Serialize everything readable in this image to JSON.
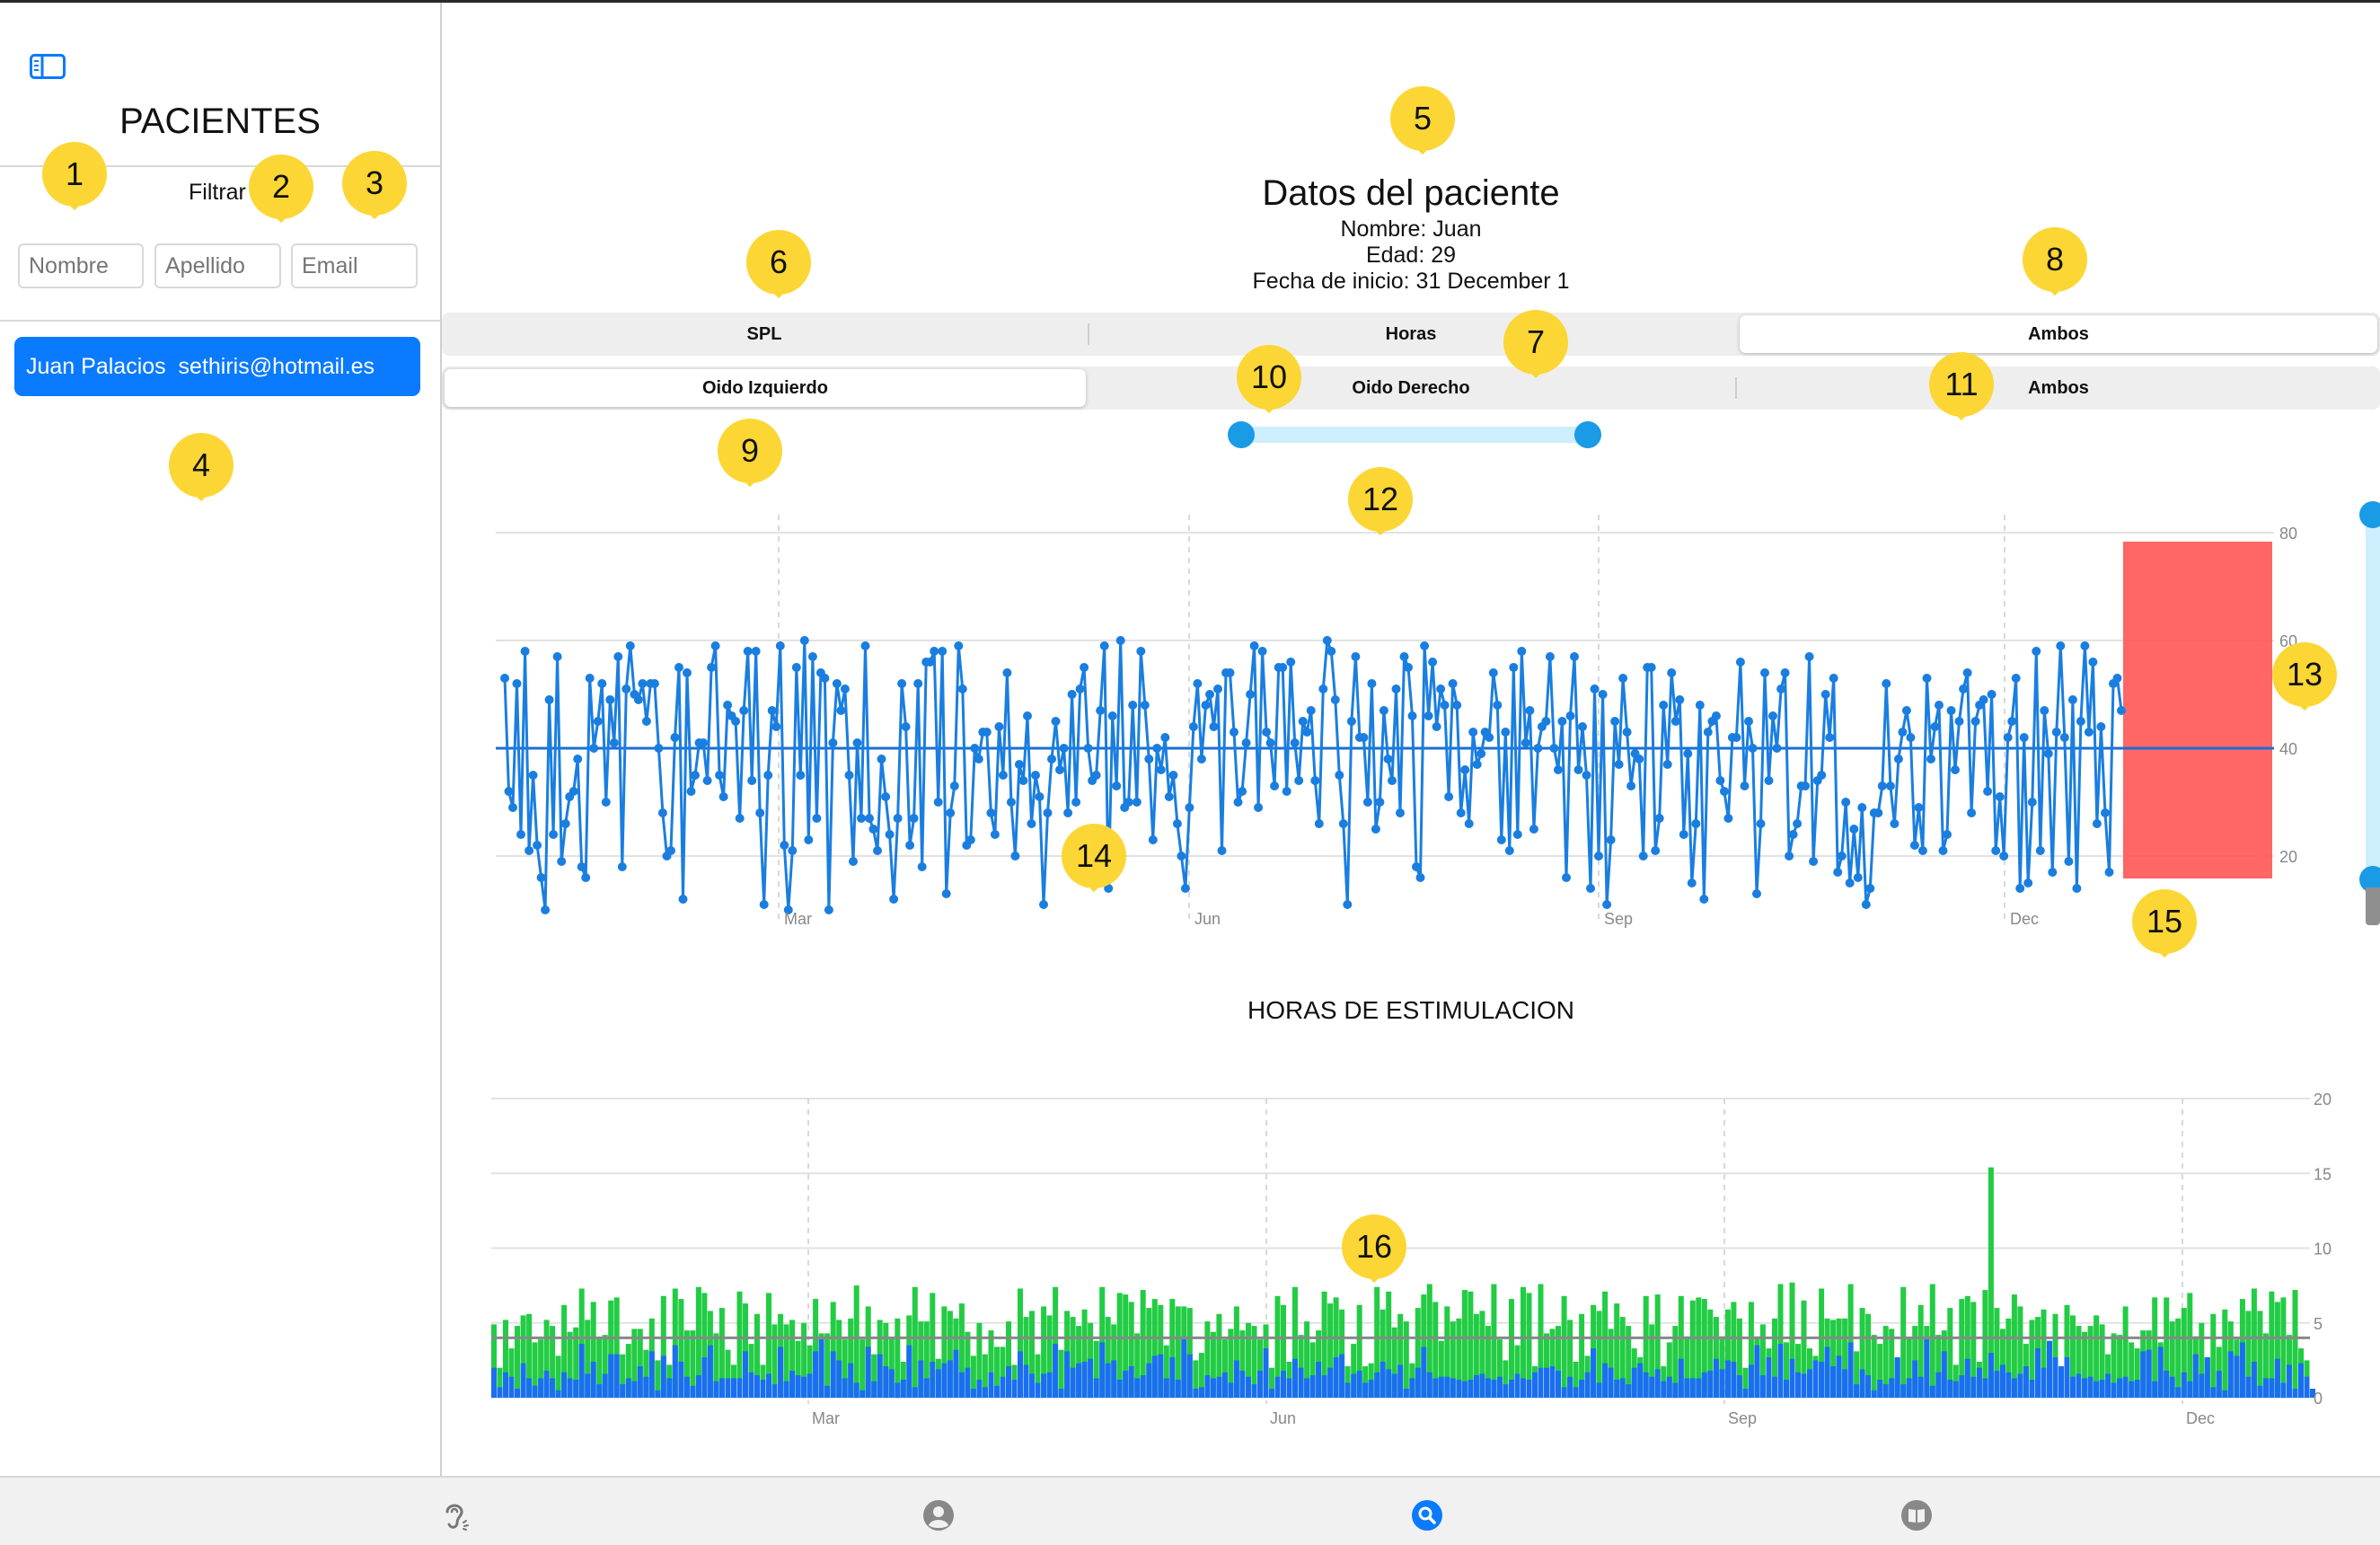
{
  "sidebar": {
    "title": "PACIENTES",
    "filter_label": "Filtrar",
    "filters": {
      "nombre": "Nombre",
      "apellido": "Apellido",
      "email": "Email"
    },
    "patients": [
      {
        "label": "Juan Palacios  sethiris@hotmail.es"
      }
    ]
  },
  "patient": {
    "title": "Datos del paciente",
    "nombre": "Nombre: Juan",
    "edad": "Edad: 29",
    "fecha": "Fecha de inicio: 31 December 1"
  },
  "segment_metric": {
    "items": [
      "SPL",
      "Horas",
      "Ambos"
    ],
    "selected": 2
  },
  "segment_ear": {
    "items": [
      "Oido Izquierdo",
      "Oido Derecho",
      "Ambos"
    ],
    "selected": 0
  },
  "colors": {
    "accent": "#0a7aff",
    "spl_line": "#1a7ee0",
    "left_ear": "#22cc44",
    "right_ear": "#1a6ff0",
    "highlight": "#ff5555",
    "slider": "#1a9be6"
  },
  "annotations": [
    "1",
    "2",
    "3",
    "4",
    "5",
    "6",
    "7",
    "8",
    "9",
    "10",
    "11",
    "12",
    "13",
    "14",
    "15",
    "16"
  ],
  "tabs": [
    "ear-icon",
    "person-icon",
    "search-icon",
    "book-icon"
  ],
  "tab_selected": 2,
  "chart_data": [
    {
      "type": "line",
      "title": "",
      "x_ticks": [
        "Mar",
        "Jun",
        "Sep",
        "Dec"
      ],
      "y_ticks": [
        "80",
        "60",
        "40",
        "20"
      ],
      "ylim": [
        10,
        85
      ],
      "reference_line": 40,
      "series": [
        {
          "values": [
            53,
            32,
            29,
            52,
            24,
            58,
            21,
            35,
            22,
            16,
            10,
            49,
            24,
            57,
            19,
            26,
            31,
            32,
            38,
            18,
            16,
            53,
            40,
            45,
            52,
            30,
            49,
            41,
            57,
            18,
            51,
            59,
            50,
            49,
            52,
            45,
            52,
            52,
            40,
            28,
            20,
            21,
            42,
            55,
            12,
            54,
            32,
            35,
            41,
            41,
            34,
            55,
            59,
            35,
            31,
            48,
            46,
            45,
            27,
            47,
            58,
            34,
            58,
            28,
            11,
            35,
            47,
            44,
            59,
            22,
            10,
            21,
            55,
            35,
            60,
            23,
            57,
            27,
            54,
            53,
            10,
            41,
            52,
            47,
            51,
            35,
            19,
            41,
            27,
            59,
            27,
            25,
            21,
            38,
            31,
            24,
            12,
            27,
            52,
            44,
            22,
            27,
            52,
            18,
            56,
            56,
            58,
            30,
            58,
            13,
            28,
            33,
            59,
            51,
            22,
            23,
            40,
            38,
            43,
            43,
            28,
            24,
            44,
            35,
            54,
            30,
            20,
            37,
            34,
            46,
            26,
            35,
            31,
            11,
            28,
            38,
            45,
            36,
            40,
            28,
            50,
            30,
            51,
            55,
            40,
            34,
            35,
            47,
            59,
            14,
            46,
            33,
            60,
            29,
            30,
            48,
            30,
            58,
            48,
            38,
            23,
            40,
            36,
            42,
            31,
            35,
            26,
            20,
            14,
            29,
            44,
            52,
            38,
            48,
            50,
            44,
            51,
            21,
            54,
            54,
            43,
            30,
            32,
            41,
            50,
            59,
            29,
            58,
            43,
            41,
            33,
            55,
            55,
            32,
            56,
            41,
            34,
            45,
            43,
            47,
            34,
            26,
            51,
            60,
            58,
            49,
            35,
            26,
            11,
            45,
            57,
            42,
            42,
            30,
            52,
            25,
            30,
            47,
            38,
            34,
            51,
            28,
            57,
            55,
            46,
            18,
            16,
            59,
            46,
            56,
            44,
            51,
            48,
            31,
            52,
            48,
            28,
            36,
            26,
            43,
            37,
            39,
            43,
            42,
            54,
            48,
            23,
            43,
            21,
            55,
            24,
            58,
            41,
            47,
            25,
            40,
            44,
            45,
            57,
            40,
            36,
            45,
            16,
            46,
            57,
            36,
            44,
            35,
            14,
            51,
            20,
            50,
            11,
            23,
            45,
            37,
            53,
            43,
            33,
            39,
            38,
            20,
            55,
            55,
            21,
            27,
            48,
            37,
            54,
            45,
            49,
            24,
            39,
            15,
            26,
            48,
            12,
            43,
            45,
            46,
            34,
            32,
            27,
            42,
            42,
            56,
            33,
            45,
            40,
            13,
            26,
            54,
            34,
            46,
            40,
            51,
            54,
            20,
            24,
            26,
            33,
            33,
            57,
            19,
            34,
            35,
            50,
            42,
            53,
            17,
            20,
            30,
            15,
            25,
            16,
            29,
            11,
            14,
            28,
            28,
            33,
            52,
            33,
            26,
            38,
            43,
            47,
            42,
            22,
            29,
            21,
            53,
            38,
            44,
            48,
            21,
            24,
            47,
            36,
            45,
            51,
            54,
            28,
            45,
            48,
            49,
            32,
            50,
            21,
            31,
            20,
            42,
            45,
            53,
            14,
            42,
            15,
            30,
            58,
            21,
            47,
            39,
            17,
            43,
            59,
            42,
            19,
            49,
            14,
            45,
            59,
            43,
            56,
            26,
            44,
            28,
            17,
            52,
            53,
            47
          ]
        }
      ]
    },
    {
      "type": "bar",
      "title": "HORAS DE ESTIMULACION",
      "x_ticks": [
        "Mar",
        "Jun",
        "Sep",
        "Dec"
      ],
      "y_ticks": [
        "20",
        "15",
        "10",
        "5",
        "0"
      ],
      "ylim": [
        0,
        22
      ],
      "reference_line": 4,
      "series": [
        {
          "name": "",
          "color": "#22cc44",
          "values": [
            4.9,
            2.0,
            5.2,
            3.3,
            4.8,
            5.5,
            5.6,
            3.7,
            3.9,
            5.2,
            4.8,
            2.8,
            6.2,
            4.4,
            4.7,
            7.3,
            5.2,
            6.4,
            4.0,
            4.2,
            6.5,
            6.7,
            2.9,
            3.6,
            4.6,
            4.6,
            3.2,
            5.3,
            2.5,
            6.8,
            2.2,
            7.3,
            6.6,
            4.5,
            4.5,
            7.4,
            7.0,
            5.8,
            4.3,
            6.0,
            3.2,
            2.2,
            7.1,
            6.3,
            3.6,
            5.6,
            2.2,
            7.0,
            4.9,
            5.6,
            4.9,
            5.2,
            3.8,
            5.0,
            3.5,
            6.6,
            4.3,
            4.3,
            6.4,
            5.2,
            3.9,
            5.3,
            7.5,
            3.9,
            6.1,
            2.9,
            5.2,
            5.0,
            4.0,
            5.3,
            2.4,
            5.5,
            7.4,
            5.1,
            5.1,
            7.0,
            2.6,
            6.1,
            5.8,
            5.3,
            6.3,
            4.4,
            2.8,
            5.0,
            2.9,
            4.5,
            3.4,
            3.4,
            5.1,
            2.2,
            7.3,
            5.4,
            5.8,
            2.9,
            6.1,
            5.5,
            7.4,
            3.2,
            5.8,
            5.4,
            4.8,
            5.9,
            5.0,
            3.8,
            7.4,
            5.4,
            4.9,
            7.0,
            6.9,
            6.4,
            4.3,
            7.2,
            6.0,
            6.6,
            6.2,
            3.5,
            6.6,
            6.1,
            6.1,
            6.0,
            2.5,
            3.0,
            5.1,
            4.4,
            5.6,
            3.9,
            4.6,
            6.1,
            4.5,
            5.0,
            4.8,
            3.9,
            4.9,
            2.0,
            6.8,
            6.2,
            2.4,
            7.4,
            4.2,
            5.1,
            3.7,
            4.5,
            7.1,
            6.3,
            6.7,
            5.9,
            2.1,
            3.6,
            6.2,
            2.1,
            2.3,
            7.4,
            5.9,
            7.1,
            4.7,
            5.6,
            5.1,
            2.3,
            6.0,
            6.9,
            7.6,
            6.4,
            3.8,
            6.1,
            5.1,
            5.3,
            7.2,
            7.1,
            5.6,
            5.8,
            4.8,
            7.6,
            3.9,
            2.5,
            6.6,
            3.5,
            7.4,
            7.0,
            2.1,
            7.6,
            4.3,
            4.6,
            4.8,
            6.8,
            5.2,
            2.4,
            5.6,
            2.8,
            6.2,
            5.8,
            7.1,
            4.6,
            6.3,
            5.4,
            4.8,
            3.3,
            2.7,
            6.8,
            4.9,
            6.9,
            2.1,
            3.7,
            4.8,
            6.8,
            4.1,
            6.5,
            6.7,
            6.6,
            5.9,
            5.4,
            4.1,
            5.9,
            6.4,
            5.3,
            2.0,
            6.4,
            4.1,
            4.9,
            3.3,
            5.3,
            7.6,
            3.7,
            7.7,
            3.6,
            6.5,
            3.3,
            2.8,
            7.3,
            5.3,
            5.2,
            5.3,
            5.3,
            7.6,
            3.1,
            6.0,
            5.6,
            4.2,
            3.6,
            4.8,
            4.6,
            2.6,
            7.4,
            4.0,
            4.8,
            6.2,
            4.8,
            7.6,
            4.2,
            4.5,
            6.0,
            2.2,
            6.6,
            6.8,
            6.4,
            2.4,
            7.2,
            15.4,
            6.0,
            4.6,
            5.3,
            6.9,
            6.1,
            3.6,
            5.2,
            5.4,
            5.9,
            3.8,
            5.6,
            2.1,
            6.2,
            5.5,
            4.8,
            4.4,
            4.8,
            5.5,
            4.9,
            2.9,
            4.3,
            4.2,
            6.1,
            3.7,
            3.3,
            4.5,
            4.5,
            6.7,
            3.7,
            6.7,
            5.1,
            5.3,
            6.0,
            7.0,
            4.1,
            5.0,
            2.7,
            5.6,
            3.4,
            5.9,
            5.1,
            3.9,
            6.6,
            5.8,
            7.3,
            5.8,
            4.3,
            7.1,
            6.4,
            6.7,
            4.2,
            7.2,
            3.3,
            2.5
          ]
        },
        {
          "name": "",
          "color": "#1a6ff0",
          "values": [
            2.0,
            0.7,
            1.7,
            1.4,
            0.6,
            2.3,
            1.3,
            0.8,
            1.3,
            1.8,
            1.3,
            0.5,
            1.7,
            1.3,
            1.2,
            3.6,
            1.6,
            2.4,
            0.9,
            1.6,
            2.9,
            2.9,
            0.9,
            1.3,
            1.1,
            2.1,
            1.4,
            3.1,
            0.5,
            2.8,
            1.3,
            3.5,
            2.4,
            1.4,
            0.8,
            1.5,
            2.7,
            3.5,
            1.1,
            1.3,
            1.3,
            1.3,
            1.3,
            3.1,
            1.7,
            1.5,
            1.2,
            1.6,
            0.9,
            3.4,
            1.1,
            1.8,
            1.5,
            1.4,
            1.6,
            3.1,
            3.9,
            0.8,
            3.1,
            2.5,
            1.3,
            2.3,
            1.0,
            0.5,
            3.4,
            1.1,
            2.9,
            2.1,
            1.9,
            1.0,
            1.2,
            3.5,
            0.7,
            2.5,
            1.3,
            2.4,
            1.9,
            2.3,
            2.5,
            3.2,
            1.7,
            2.0,
            0.6,
            1.2,
            0.7,
            1.7,
            0.8,
            1.4,
            2.1,
            1.2,
            3.1,
            2.2,
            1.6,
            1.0,
            1.6,
            1.7,
            3.6,
            0.6,
            3.1,
            2.0,
            2.3,
            2.4,
            2.6,
            1.3,
            3.7,
            2.3,
            2.5,
            1.2,
            1.8,
            2.1,
            1.3,
            1.5,
            2.3,
            2.8,
            2.9,
            1.3,
            2.7,
            1.2,
            3.9,
            2.9,
            0.6,
            0.7,
            1.5,
            1.3,
            1.4,
            1.7,
            1.0,
            2.5,
            1.8,
            1.4,
            0.9,
            1.8,
            3.3,
            0.6,
            1.4,
            1.8,
            1.3,
            2.6,
            2.0,
            1.3,
            1.5,
            2.4,
            1.5,
            2.0,
            2.7,
            2.9,
            1.0,
            1.6,
            1.8,
            1.0,
            1.2,
            1.7,
            2.4,
            1.9,
            1.6,
            2.2,
            0.6,
            1.3,
            2.0,
            3.4,
            1.7,
            1.3,
            1.4,
            1.4,
            1.3,
            1.2,
            1.1,
            1.2,
            1.5,
            1.6,
            1.3,
            1.2,
            1.4,
            0.9,
            1.2,
            1.6,
            1.3,
            1.2,
            1.7,
            2.0,
            2.0,
            2.1,
            1.8,
            0.7,
            1.4,
            0.7,
            1.2,
            1.7,
            3.3,
            1.0,
            2.3,
            2.0,
            1.2,
            1.3,
            0.9,
            2.0,
            2.3,
            1.7,
            1.4,
            1.9,
            1.1,
            1.4,
            1.0,
            2.6,
            1.3,
            1.3,
            1.3,
            1.7,
            1.8,
            2.6,
            1.9,
            2.5,
            2.4,
            1.5,
            0.6,
            2.2,
            3.5,
            1.5,
            2.7,
            1.4,
            3.6,
            1.2,
            2.6,
            1.7,
            1.6,
            1.9,
            2.5,
            2.4,
            3.4,
            2.1,
            2.8,
            1.9,
            3.7,
            0.9,
            1.9,
            1.5,
            0.5,
            1.2,
            0.9,
            1.3,
            2.7,
            0.9,
            1.3,
            2.5,
            1.4,
            3.9,
            0.8,
            1.7,
            3.1,
            1.2,
            1.1,
            1.5,
            2.6,
            1.4,
            2.0,
            1.3,
            3.0,
            1.8,
            2.2,
            1.7,
            1.3,
            1.6,
            2.1,
            1.2,
            3.3,
            2.0,
            3.8,
            2.7,
            2.1,
            2.7,
            1.4,
            1.6,
            1.3,
            1.4,
            1.1,
            1.2,
            1.6,
            1.0,
            1.3,
            1.4,
            1.1,
            1.2,
            3.1,
            3.2,
            1.1,
            3.4,
            1.8,
            1.4,
            0.7,
            1.7,
            1.1,
            2.9,
            1.6,
            2.7,
            0.7,
            1.8,
            0.5,
            3.1,
            2.8,
            3.7,
            1.4,
            2.4,
            0.8,
            1.3,
            1.3,
            2.6,
            1.0,
            2.2,
            0.6,
            2.3,
            1.4,
            0.6
          ]
        }
      ]
    }
  ]
}
